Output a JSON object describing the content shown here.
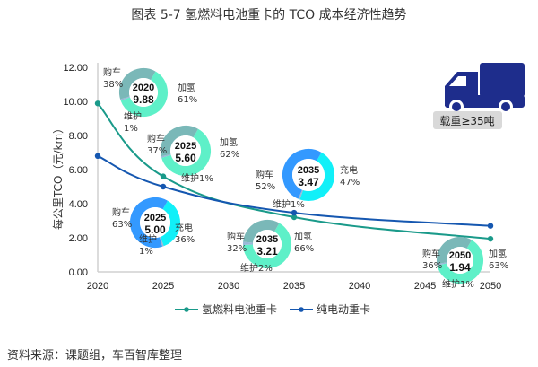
{
  "title": "图表 5-7  氢燃料电池重卡的 TCO 成本经济性趋势",
  "source": "资料来源：课题组，车百智库整理",
  "truck_badge": "载重≥35吨",
  "colors": {
    "h2_line": "#1a9a8a",
    "ev_line": "#1557b0",
    "purchase_h2": "#7ab8b8",
    "fuel_h2": "#5ef0c8",
    "purchase_ev": "#3399ff",
    "charge_ev": "#11f0f8",
    "maint": "#9ab8d8",
    "truck": "#1e2d8c"
  },
  "chart_data": {
    "type": "line",
    "title": "图表 5-7  氢燃料电池重卡的 TCO 成本经济性趋势",
    "xlabel": "",
    "ylabel": "每公里TCO（元/km）",
    "x": [
      2020,
      2025,
      2035,
      2050
    ],
    "xticks": [
      "2020",
      "2025",
      "2030",
      "2035",
      "2040",
      "2045",
      "2050"
    ],
    "xlim": [
      2020,
      2050
    ],
    "yticks": [
      "0.00",
      "2.00",
      "4.00",
      "6.00",
      "8.00",
      "10.00",
      "12.00"
    ],
    "ylim": [
      0,
      12
    ],
    "legend_position": "bottom",
    "series": [
      {
        "name": "氢燃料电池重卡",
        "values": [
          9.88,
          5.6,
          3.21,
          1.94
        ]
      },
      {
        "name": "纯电动重卡",
        "values": [
          6.8,
          5.0,
          3.47,
          2.7
        ]
      }
    ],
    "donuts": [
      {
        "series": "氢燃料电池重卡",
        "year": "2020",
        "value": "9.88",
        "parts": [
          {
            "label": "购车",
            "pct": 38
          },
          {
            "label": "加氢",
            "pct": 61
          },
          {
            "label": "维护",
            "pct": 1
          }
        ]
      },
      {
        "series": "氢燃料电池重卡",
        "year": "2025",
        "value": "5.60",
        "parts": [
          {
            "label": "购车",
            "pct": 37
          },
          {
            "label": "加氢",
            "pct": 62
          },
          {
            "label": "维护",
            "pct": 1
          }
        ]
      },
      {
        "series": "纯电动重卡",
        "year": "2035",
        "value": "3.47",
        "parts": [
          {
            "label": "购车",
            "pct": 52
          },
          {
            "label": "充电",
            "pct": 47
          },
          {
            "label": "维护",
            "pct": 1
          }
        ]
      },
      {
        "series": "纯电动重卡",
        "year": "2025",
        "value": "5.00",
        "parts": [
          {
            "label": "购车",
            "pct": 63
          },
          {
            "label": "充电",
            "pct": 36
          },
          {
            "label": "维护",
            "pct": 1
          }
        ]
      },
      {
        "series": "氢燃料电池重卡",
        "year": "2035",
        "value": "3.21",
        "parts": [
          {
            "label": "购车",
            "pct": 32
          },
          {
            "label": "加氢",
            "pct": 66
          },
          {
            "label": "维护",
            "pct": 2
          }
        ]
      },
      {
        "series": "氢燃料电池重卡",
        "year": "2050",
        "value": "1.94",
        "parts": [
          {
            "label": "购车",
            "pct": 36
          },
          {
            "label": "加氢",
            "pct": 63
          },
          {
            "label": "维护",
            "pct": 1
          }
        ]
      }
    ]
  }
}
